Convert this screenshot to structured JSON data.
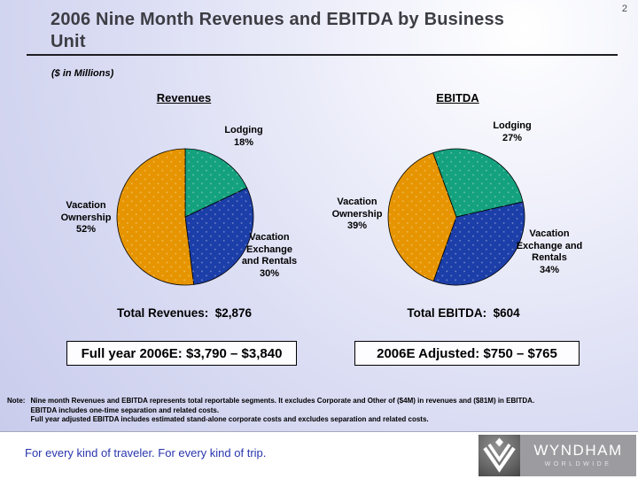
{
  "page_number": "2",
  "title": "2006 Nine Month Revenues and EBITDA by Business Unit",
  "subtitle": "($ in Millions)",
  "chart_data": [
    {
      "type": "pie",
      "title": "Revenues",
      "total_label": "Total Revenues:  $2,876",
      "start_angle_deg": 0,
      "slices": [
        {
          "label": "Lodging",
          "pct_label": "18%",
          "value_pct": 18,
          "color": "#14a17e"
        },
        {
          "label": "Vacation Exchange and Rentals",
          "pct_label": "30%",
          "value_pct": 30,
          "color": "#1c3ea8"
        },
        {
          "label": "Vacation Ownership",
          "pct_label": "52%",
          "value_pct": 52,
          "color": "#e69500"
        }
      ]
    },
    {
      "type": "pie",
      "title": "EBITDA",
      "total_label": "Total EBITDA:  $604",
      "start_angle_deg": -20,
      "slices": [
        {
          "label": "Lodging",
          "pct_label": "27%",
          "value_pct": 27,
          "color": "#14a17e"
        },
        {
          "label": "Vacation Exchange and Rentals",
          "pct_label": "34%",
          "value_pct": 34,
          "color": "#1c3ea8"
        },
        {
          "label": "Vacation Ownership",
          "pct_label": "39%",
          "value_pct": 39,
          "color": "#e69500"
        }
      ]
    }
  ],
  "callout_boxes": [
    {
      "text": "Full year 2006E: $3,790 – $3,840"
    },
    {
      "text": "2006E Adjusted: $750 – $765"
    }
  ],
  "note": {
    "prefix": "Note:",
    "lines": [
      "Nine month Revenues and EBITDA represents total reportable segments. It excludes Corporate and Other of ($4M) in revenues and ($81M) in EBITDA.",
      "EBITDA includes one-time separation and related costs.",
      "Full year adjusted EBITDA includes estimated stand-alone corporate costs and excludes separation and related costs."
    ]
  },
  "footer": {
    "tagline": "For every kind of traveler. For every kind of trip.",
    "logo_brand": "WYNDHAM",
    "logo_sub": "WORLDWIDE"
  },
  "colors": {
    "title_text": "#3d3d44",
    "background_lavender": "#c7caeb",
    "pie_green": "#14a17e",
    "pie_blue": "#1c3ea8",
    "pie_orange": "#e69500",
    "tagline_blue": "#2936ae",
    "logo_gray": "#9c9ca0"
  }
}
